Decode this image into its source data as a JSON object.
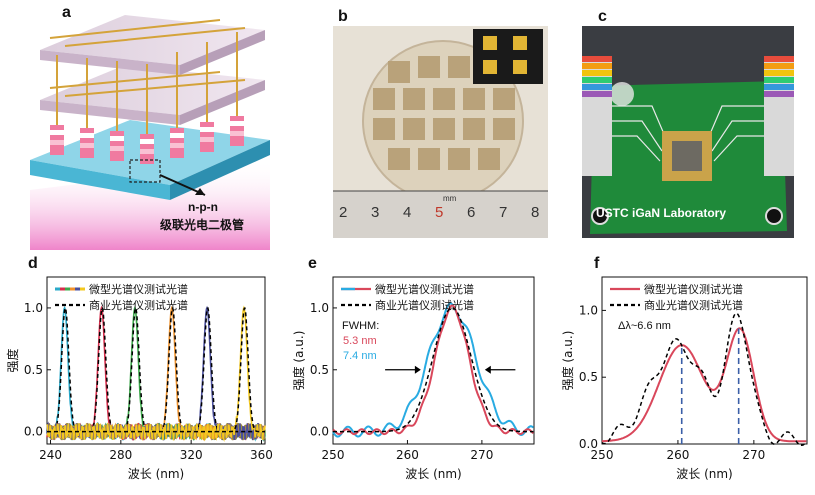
{
  "panels": {
    "a": {
      "letter": "a",
      "label_line1": "n-p-n",
      "label_line2": "级联光电二极管"
    },
    "b": {
      "letter": "b",
      "mm_label": "mm",
      "ruler_numbers": [
        "2",
        "3",
        "4",
        "5",
        "6",
        "7",
        "8"
      ]
    },
    "c": {
      "letter": "c",
      "board_text": "USTC iGaN Laboratory"
    },
    "d": {
      "letter": "d"
    },
    "e": {
      "letter": "e",
      "fwhm_title": "FWHM:",
      "fwhm_red": "5.3 nm",
      "fwhm_blue": "7.4 nm"
    },
    "f": {
      "letter": "f",
      "delta_label": "Δλ~6.6 nm"
    }
  },
  "chart_data": [
    {
      "panel": "d",
      "type": "line",
      "xlabel": "波长 (nm)",
      "ylabel": "强度",
      "xlim": [
        238,
        362
      ],
      "ylim": [
        -0.1,
        1.25
      ],
      "xticks": [
        240,
        280,
        320,
        360
      ],
      "xtick_labels": [
        "240",
        "280",
        "320",
        "360"
      ],
      "yticks": [
        0.0,
        0.5,
        1.0
      ],
      "ytick_labels": [
        "0.0",
        "0.5",
        "1.0"
      ],
      "legend": [
        "微型光谱仪测试光谱",
        "商业光谱仪测试光谱"
      ],
      "peaks": [
        {
          "center": 248,
          "fwhm": 4.5,
          "color": "#2aa9c9"
        },
        {
          "center": 269,
          "fwhm": 4.5,
          "color": "#d62d4b"
        },
        {
          "center": 288,
          "fwhm": 4.5,
          "color": "#3ca84a"
        },
        {
          "center": 309,
          "fwhm": 4.5,
          "color": "#f0922b"
        },
        {
          "center": 329,
          "fwhm": 4.5,
          "color": "#4a4f9c"
        },
        {
          "center": 350,
          "fwhm": 4.5,
          "color": "#f3c81f"
        }
      ]
    },
    {
      "panel": "e",
      "type": "line",
      "xlabel": "波长 (nm)",
      "ylabel": "强度 (a.u.)",
      "xlim": [
        250,
        277
      ],
      "ylim": [
        -0.1,
        1.25
      ],
      "xticks": [
        250,
        260,
        270
      ],
      "xtick_labels": [
        "250",
        "260",
        "270"
      ],
      "yticks": [
        0.0,
        0.5,
        1.0
      ],
      "ytick_labels": [
        "0.0",
        "0.5",
        "1.0"
      ],
      "legend": [
        "微型光谱仪测试光谱",
        "商业光谱仪测试光谱"
      ],
      "series": [
        {
          "name": "微型光谱仪测试光谱",
          "color": "#29abe2",
          "center": 266,
          "fwhm": 7.4
        },
        {
          "name": "微型光谱仪测试光谱",
          "color": "#d9475b",
          "center": 266,
          "fwhm": 5.3
        },
        {
          "name": "商业光谱仪测试光谱",
          "color": "#000000",
          "center": 266,
          "fwhm": 6.0
        }
      ]
    },
    {
      "panel": "f",
      "type": "line",
      "xlabel": "波长 (nm)",
      "ylabel": "强度 (a.u.)",
      "xlim": [
        250,
        277
      ],
      "ylim": [
        0,
        1.25
      ],
      "xticks": [
        250,
        260,
        270
      ],
      "xtick_labels": [
        "250",
        "260",
        "270"
      ],
      "yticks": [
        0.0,
        0.5,
        1.0
      ],
      "ytick_labels": [
        "0.0",
        "0.5",
        "1.0"
      ],
      "legend": [
        "微型光谱仪测试光谱",
        "商业光谱仪测试光谱"
      ],
      "marker_lines": [
        260.5,
        268.0
      ],
      "series": [
        {
          "name": "微型光谱仪测试光谱",
          "color": "#d9475b"
        },
        {
          "name": "商业光谱仪测试光谱",
          "color": "#000000"
        }
      ]
    }
  ]
}
